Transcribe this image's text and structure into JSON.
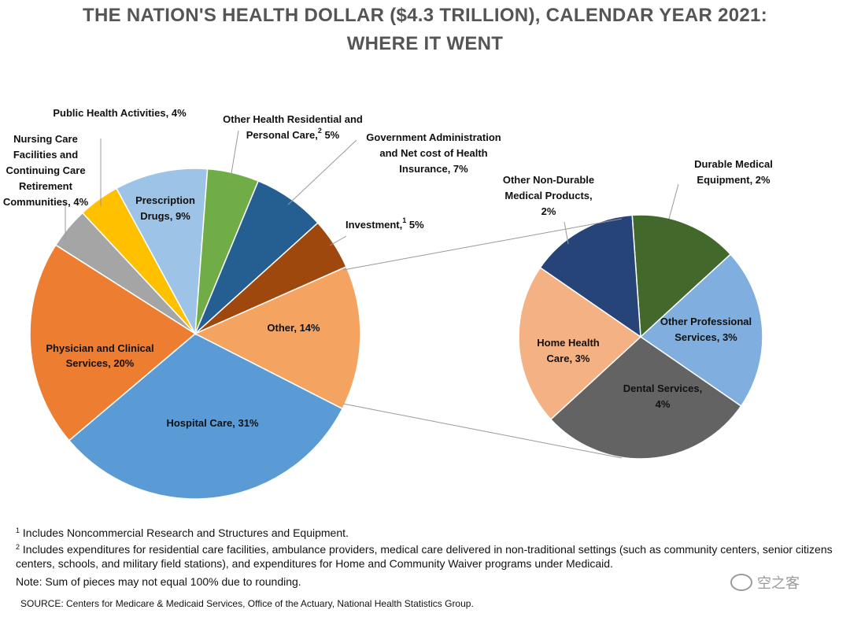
{
  "title_line1": "THE NATION'S HEALTH DOLLAR ($4.3 TRILLION), CALENDAR YEAR 2021:",
  "title_line2": "WHERE IT WENT",
  "chart_data": [
    {
      "type": "pie",
      "title": "THE NATION'S HEALTH DOLLAR ($4.3 TRILLION), CALENDAR YEAR 2021: WHERE IT WENT",
      "slices": [
        {
          "label": "Hospital Care, 31%",
          "value": 31,
          "color": "#5B9BD5"
        },
        {
          "label": "Physician and Clinical Services, 20%",
          "value": 20,
          "color": "#ED7D31"
        },
        {
          "label": "Nursing Care Facilities and Continuing Care Retirement Communities, 4%",
          "value": 4,
          "color": "#A5A5A5"
        },
        {
          "label": "Public Health Activities, 4%",
          "value": 4,
          "color": "#FFC000"
        },
        {
          "label": "Prescription Drugs, 9%",
          "value": 9,
          "color": "#9DC3E6"
        },
        {
          "label": "Other Health Residential and Personal Care, 5%",
          "value": 5,
          "color": "#70AD47"
        },
        {
          "label": "Government Administration and Net cost of Health Insurance, 7%",
          "value": 7,
          "color": "#255E91"
        },
        {
          "label": "Investment, 5%",
          "value": 5,
          "color": "#9E480E"
        },
        {
          "label": "Other, 14%",
          "value": 14,
          "color": "#F4A460"
        }
      ]
    },
    {
      "type": "pie",
      "title": "Other, 14%",
      "slices": [
        {
          "label": "Durable Medical Equipment, 2%",
          "value": 2,
          "color": "#43682B"
        },
        {
          "label": "Other Professional Services, 3%",
          "value": 3,
          "color": "#7FAEDF"
        },
        {
          "label": "Dental Services, 4%",
          "value": 4,
          "color": "#636363"
        },
        {
          "label": "Home Health Care, 3%",
          "value": 3,
          "color": "#F4B183"
        },
        {
          "label": "Other Non-Durable Medical Products, 2%",
          "value": 2,
          "color": "#264478"
        }
      ]
    }
  ],
  "labels": {
    "hospital": "Hospital Care, 31%",
    "physician_1": "Physician and Clinical",
    "physician_2": "Services, 20%",
    "nursing_1": "Nursing Care",
    "nursing_2": "Facilities and",
    "nursing_3": "Continuing Care",
    "nursing_4": "Retirement",
    "nursing_5": "Communities, 4%",
    "public_health": "Public Health Activities, 4%",
    "rx_1": "Prescription",
    "rx_2": "Drugs, 9%",
    "ohr_1": "Other Health Residential and",
    "ohr_2a": "Personal Care,",
    "ohr_sup": "2",
    "ohr_2b": " 5%",
    "gov_1": "Government Administration",
    "gov_2": "and Net cost of Health",
    "gov_3": "Insurance, 7%",
    "inv_a": "Investment,",
    "inv_sup": "1",
    "inv_b": " 5%",
    "other": "Other, 14%",
    "dme_1": "Durable Medical",
    "dme_2": "Equipment, 2%",
    "ops_1": "Other Professional",
    "ops_2": "Services, 3%",
    "dental_1": "Dental Services,",
    "dental_2": "4%",
    "home_1": "Home Health",
    "home_2": "Care, 3%",
    "ondmp_1": "Other Non-Durable",
    "ondmp_2": "Medical Products,",
    "ondmp_3": "2%"
  },
  "footnotes": {
    "fn1_mark": "1",
    "fn1": " Includes Noncommercial Research and Structures and Equipment.",
    "fn2_mark": "2",
    "fn2": " Includes expenditures for residential care facilities, ambulance providers, medical care delivered in non-traditional settings (such as community centers, senior citizens centers, schools, and military field stations), and expenditures for Home and Community Waiver programs under Medicaid.",
    "note": "Note: Sum of pieces may not equal 100% due to rounding.",
    "source": "SOURCE: Centers for Medicare & Medicaid Services, Office of the Actuary, National Health Statistics Group."
  },
  "watermark": "空之客"
}
